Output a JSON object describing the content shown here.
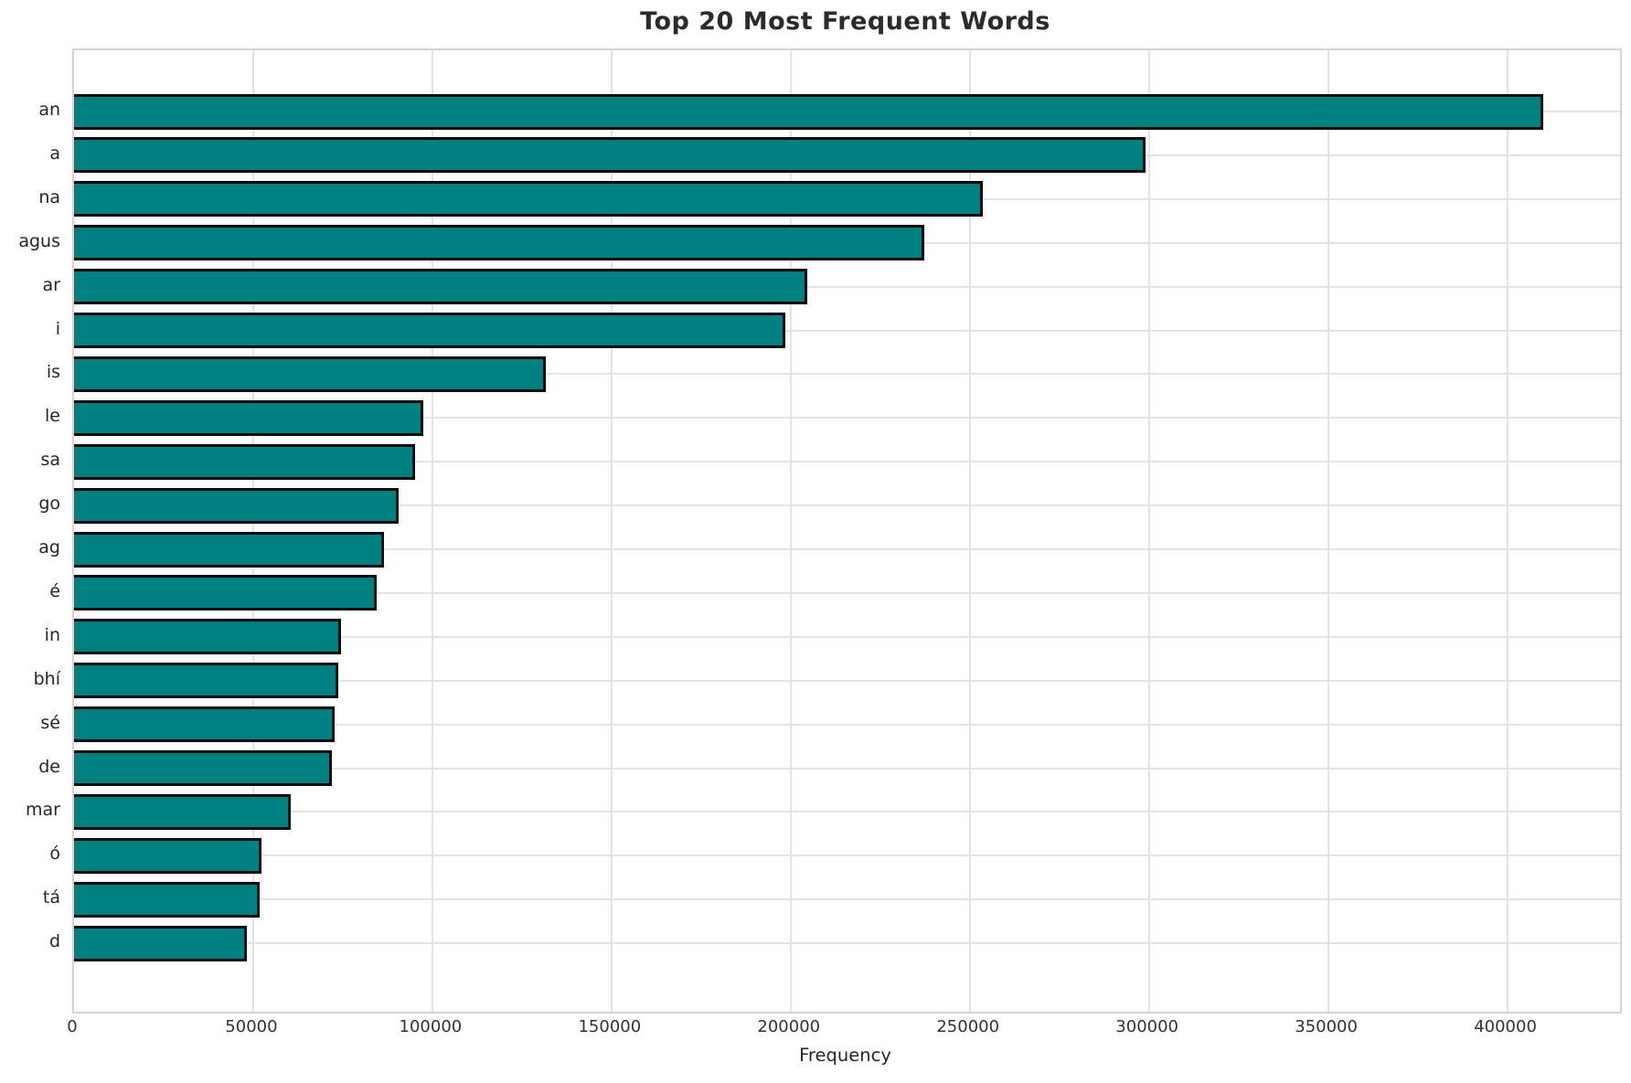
{
  "chart_data": {
    "type": "bar",
    "orientation": "horizontal",
    "title": "Top 20 Most Frequent Words",
    "xlabel": "Frequency",
    "ylabel": "",
    "categories": [
      "an",
      "a",
      "na",
      "agus",
      "ar",
      "i",
      "is",
      "le",
      "sa",
      "go",
      "ag",
      "é",
      "in",
      "bhí",
      "sé",
      "de",
      "mar",
      "ó",
      "tá",
      "d"
    ],
    "values": [
      410100,
      299000,
      253700,
      237400,
      204700,
      198500,
      131700,
      97600,
      95100,
      90600,
      86500,
      84400,
      74500,
      73800,
      72800,
      72000,
      60600,
      52300,
      51900,
      48300
    ],
    "xticks": [
      0,
      50000,
      100000,
      150000,
      200000,
      250000,
      300000,
      350000,
      400000
    ],
    "xtick_labels": [
      "0",
      "50000",
      "100000",
      "150000",
      "200000",
      "250000",
      "300000",
      "350000",
      "400000"
    ],
    "xlim": [
      0,
      431500
    ],
    "grid": true,
    "legend": false,
    "bar_color": "#008080",
    "bar_edge_color": "#0a0a0a",
    "grid_color": "#e3e3e3",
    "background_color": "#ffffff"
  }
}
